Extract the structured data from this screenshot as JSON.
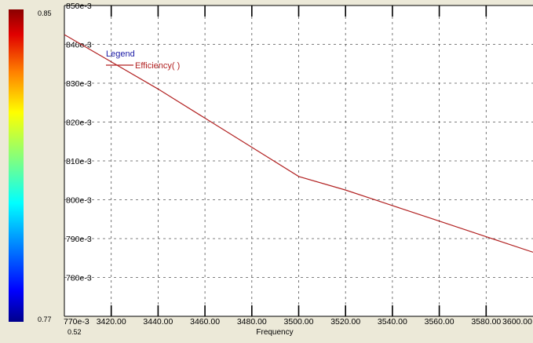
{
  "colorbar": {
    "max_label": "0.85",
    "min_label": "0.77",
    "bottom_label": "0.52"
  },
  "chart_data": {
    "type": "line",
    "title": "",
    "xlabel": "Frequency",
    "ylabel": "",
    "xlim": [
      3400,
      3600
    ],
    "ylim": [
      0.77,
      0.85
    ],
    "x_ticks": [
      3420,
      3440,
      3460,
      3480,
      3500,
      3520,
      3540,
      3560,
      3580,
      3600
    ],
    "x_tick_labels": [
      "3420.00",
      "3440.00",
      "3460.00",
      "3480.00",
      "3500.00",
      "3520.00",
      "3540.00",
      "3560.00",
      "3580.00",
      "3600.00"
    ],
    "y_ticks": [
      0.78,
      0.79,
      0.8,
      0.81,
      0.82,
      0.83,
      0.84,
      0.85
    ],
    "y_tick_labels": [
      "780e-3",
      "790e-3",
      "800e-3",
      "810e-3",
      "820e-3",
      "830e-3",
      "840e-3",
      "850e-3"
    ],
    "y_origin_label": "770e-3",
    "grid": true,
    "legend": {
      "title": "Legend",
      "placement": "top-left",
      "entries": [
        "Efficiency( )"
      ]
    },
    "series": [
      {
        "name": "Efficiency( )",
        "color": "#b22222",
        "x": [
          3400,
          3420,
          3440,
          3460,
          3480,
          3500,
          3520,
          3540,
          3560,
          3580,
          3600
        ],
        "y": [
          0.8425,
          0.8355,
          0.8285,
          0.821,
          0.8135,
          0.806,
          0.8025,
          0.7985,
          0.7945,
          0.7905,
          0.7865
        ]
      }
    ]
  },
  "colors": {
    "legend_title": "#1a1aa6",
    "series": "#b22222",
    "plot_bg": "#ffffff",
    "frame_bg": "#ece9d8"
  }
}
